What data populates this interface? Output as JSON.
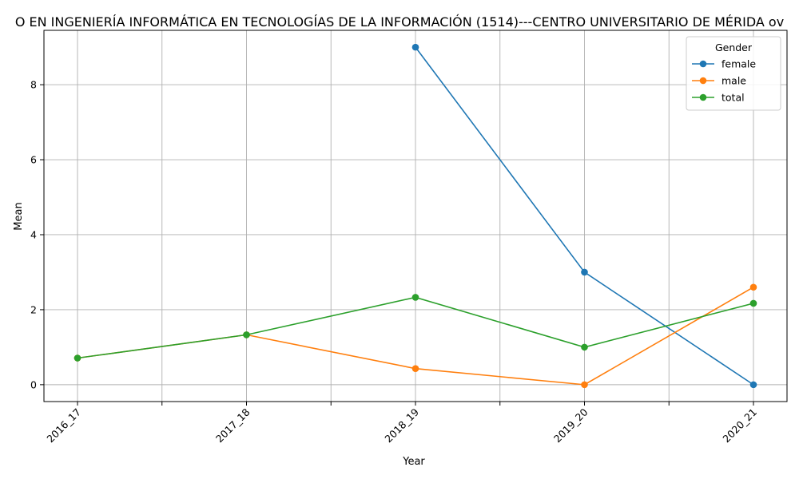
{
  "chart_data": {
    "type": "line",
    "title": "O EN INGENIERÍA INFORMÁTICA EN TECNOLOGÍAS DE LA INFORMACIÓN (1514)---CENTRO UNIVERSITARIO DE MÉRIDA ov",
    "xlabel": "Year",
    "ylabel": "Mean",
    "categories": [
      "2016_17",
      "2017_18",
      "2018_19",
      "2019_20",
      "2020_21"
    ],
    "ylim": [
      -0.45,
      9.45
    ],
    "yticks": [
      "0",
      "2",
      "4",
      "6",
      "8"
    ],
    "grid": true,
    "legend": {
      "title": "Gender",
      "placement": "top-right"
    },
    "series": [
      {
        "name": "female",
        "color": "#1f77b4",
        "values": [
          null,
          null,
          9.0,
          3.0,
          0.0
        ]
      },
      {
        "name": "male",
        "color": "#ff7f0e",
        "values": [
          0.71,
          1.33,
          0.43,
          0.0,
          2.6
        ]
      },
      {
        "name": "total",
        "color": "#2ca02c",
        "values": [
          0.71,
          1.33,
          2.33,
          1.0,
          2.17
        ]
      }
    ]
  }
}
